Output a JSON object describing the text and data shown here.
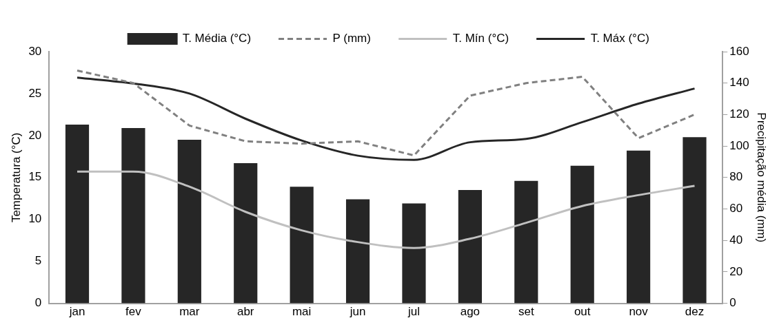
{
  "chart_data": {
    "type": "bar",
    "categories": [
      "jan",
      "fev",
      "mar",
      "abr",
      "mai",
      "jun",
      "jul",
      "ago",
      "set",
      "out",
      "nov",
      "dez"
    ],
    "ylabel": "Temperatura (°C)",
    "y2label": "Precipitação média (mm)",
    "ylim": [
      0,
      30
    ],
    "yticks": [
      0,
      5,
      10,
      15,
      20,
      25,
      30
    ],
    "y2lim": [
      0,
      160
    ],
    "y2ticks": [
      0,
      20,
      40,
      60,
      80,
      100,
      120,
      140,
      160
    ],
    "grid": false,
    "legend": "top",
    "marker": "none",
    "series": [
      {
        "name": "T. Média (°C)",
        "color": "#262626",
        "values": [
          21.3,
          20.9,
          19.5,
          16.7,
          13.9,
          12.4,
          11.9,
          13.5,
          14.6,
          16.4,
          18.2,
          19.8
        ]
      },
      {
        "name": "P (mm)",
        "type": "line",
        "axis": "y2",
        "line_style": "dashed",
        "color": "#808080",
        "values": [
          148,
          140,
          113,
          103,
          101.5,
          103,
          94,
          132,
          140,
          144,
          105,
          120
        ]
      },
      {
        "name": "T. Mín (°C)",
        "type": "line",
        "line_style": "solid",
        "color": "#c0c0c0",
        "values": [
          15.7,
          15.7,
          13.9,
          10.9,
          8.7,
          7.3,
          6.6,
          7.7,
          9.6,
          11.6,
          12.9,
          14.0
        ]
      },
      {
        "name": "T. Máx (°C)",
        "type": "line",
        "line_style": "solid",
        "color": "#262626",
        "values": [
          26.9,
          26.2,
          25.0,
          22.0,
          19.4,
          17.6,
          17.1,
          19.2,
          19.6,
          21.6,
          23.8,
          25.6
        ]
      }
    ]
  }
}
